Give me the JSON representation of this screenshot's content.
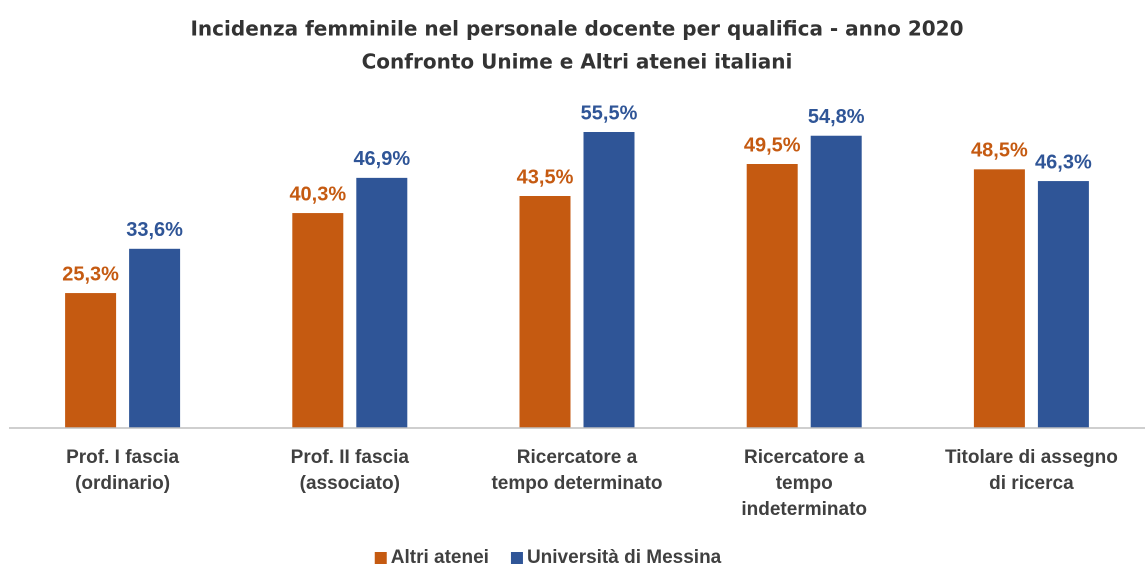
{
  "chart_data": {
    "type": "bar",
    "title": "Incidenza femminile nel personale docente per qualifica - anno 2020",
    "subtitle": "Confronto Unime e Altri atenei italiani",
    "categories": [
      [
        "Prof. I fascia",
        "(ordinario)"
      ],
      [
        "Prof. II fascia",
        "(associato)"
      ],
      [
        "Ricercatore a",
        "tempo determinato"
      ],
      [
        "Ricercatore a",
        "tempo",
        "indeterminato"
      ],
      [
        "Titolare di assegno",
        "di ricerca"
      ]
    ],
    "series": [
      {
        "name": "Altri atenei",
        "color": "#c55a11",
        "values": [
          25.3,
          40.3,
          43.5,
          49.5,
          48.5
        ],
        "value_labels": [
          "25,3%",
          "40,3%",
          "43,5%",
          "49,5%",
          "48,5%"
        ]
      },
      {
        "name": "Università di Messina",
        "color": "#2f5597",
        "values": [
          33.6,
          46.9,
          55.5,
          54.8,
          46.3
        ],
        "value_labels": [
          "33,6%",
          "46,9%",
          "55,5%",
          "54,8%",
          "46,3%"
        ]
      }
    ],
    "ylim": [
      0,
      60
    ],
    "legend": "bottom"
  }
}
